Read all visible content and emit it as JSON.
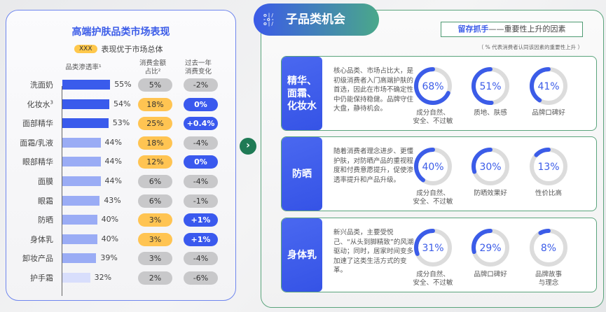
{
  "left": {
    "title": "高端护肤品类市场表现",
    "legend_chip": "XXX",
    "legend_text": "表现优于市场总体",
    "col_penetration": [
      "品类",
      "渗透率¹"
    ],
    "col_share": [
      "消费金额",
      "占比²"
    ],
    "col_change": [
      "过去一年",
      "消费变化"
    ]
  },
  "chart_data": {
    "type": "bar",
    "orientation": "horizontal",
    "ylabel": "品类渗透率¹",
    "xlim": [
      0,
      60
    ],
    "categories": [
      "洗面奶",
      "化妆水³",
      "面部精华",
      "面霜/乳液",
      "眼部精华",
      "面膜",
      "眼霜",
      "防晒",
      "身体乳",
      "卸妆产品",
      "护手霜"
    ],
    "values": [
      55,
      54,
      53,
      44,
      44,
      44,
      43,
      40,
      40,
      39,
      32
    ],
    "value_labels": [
      "55%",
      "54%",
      "53%",
      "44%",
      "44%",
      "44%",
      "43%",
      "40%",
      "40%",
      "39%",
      "32%"
    ],
    "tiers": [
      "high",
      "high",
      "high",
      "mid",
      "mid",
      "mid",
      "mid",
      "mid",
      "mid",
      "mid",
      "low"
    ],
    "share": [
      "5%",
      "18%",
      "25%",
      "18%",
      "12%",
      "6%",
      "6%",
      "3%",
      "3%",
      "3%",
      "2%"
    ],
    "share_highlight": [
      false,
      true,
      true,
      true,
      true,
      false,
      false,
      true,
      true,
      false,
      false
    ],
    "change": [
      "-2%",
      "0%",
      "+0.4%",
      "-4%",
      "0%",
      "-4%",
      "-1%",
      "+1%",
      "+1%",
      "-4%",
      "-6%"
    ],
    "change_highlight": [
      false,
      true,
      true,
      false,
      true,
      false,
      false,
      true,
      true,
      false,
      false
    ]
  },
  "colors": {
    "bar_high": "#3a5bec",
    "bar_mid": "#9aacf5",
    "bar_low": "#d8defc",
    "highlight": "#ffc452",
    "up": "#3a59ee",
    "neutral": "#c8c8ca",
    "accent_green": "#5aa47c"
  },
  "right": {
    "title": "子品类机会",
    "factor_bold": "留存抓手",
    "factor_rest": "——重要性上升的因素",
    "note": "（ % 代表消费者认同该因素的重要性上升 ）",
    "cards": [
      {
        "name": "精华、\n面霜、\n化妆水",
        "desc": "核心品类、市场占比大，是初级消费者入门高端护肤的首选，因此在市场不确定性中仍能保持稳健。品牌守住大盘，静待机会。",
        "rings": [
          {
            "value": 68,
            "label": "68%",
            "text": "成分自然、\n安全、不过敏"
          },
          {
            "value": 51,
            "label": "51%",
            "text": "质地、肤感"
          },
          {
            "value": 41,
            "label": "41%",
            "text": "品牌口碑好"
          }
        ]
      },
      {
        "name": "防晒",
        "desc": "随着消费者理念进步、更懂护肤，对防晒产品的重视程度和付费意愿提升，促使渗透率提升和产品升级。",
        "rings": [
          {
            "value": 40,
            "label": "40%",
            "text": "成分自然、\n安全、不过敏"
          },
          {
            "value": 30,
            "label": "30%",
            "text": "防晒效果好"
          },
          {
            "value": 13,
            "label": "13%",
            "text": "性价比高"
          }
        ]
      },
      {
        "name": "身体乳",
        "desc": "新兴品类，主要受悦己、“从头到脚精致”的风潮驱动；同时，居家时间变多加速了这类生活方式的变革。",
        "rings": [
          {
            "value": 31,
            "label": "31%",
            "text": "成分自然、\n安全、不过敏"
          },
          {
            "value": 29,
            "label": "29%",
            "text": "品牌口碑好"
          },
          {
            "value": 8,
            "label": "8%",
            "text": "品牌故事\n与理念"
          }
        ]
      }
    ]
  }
}
